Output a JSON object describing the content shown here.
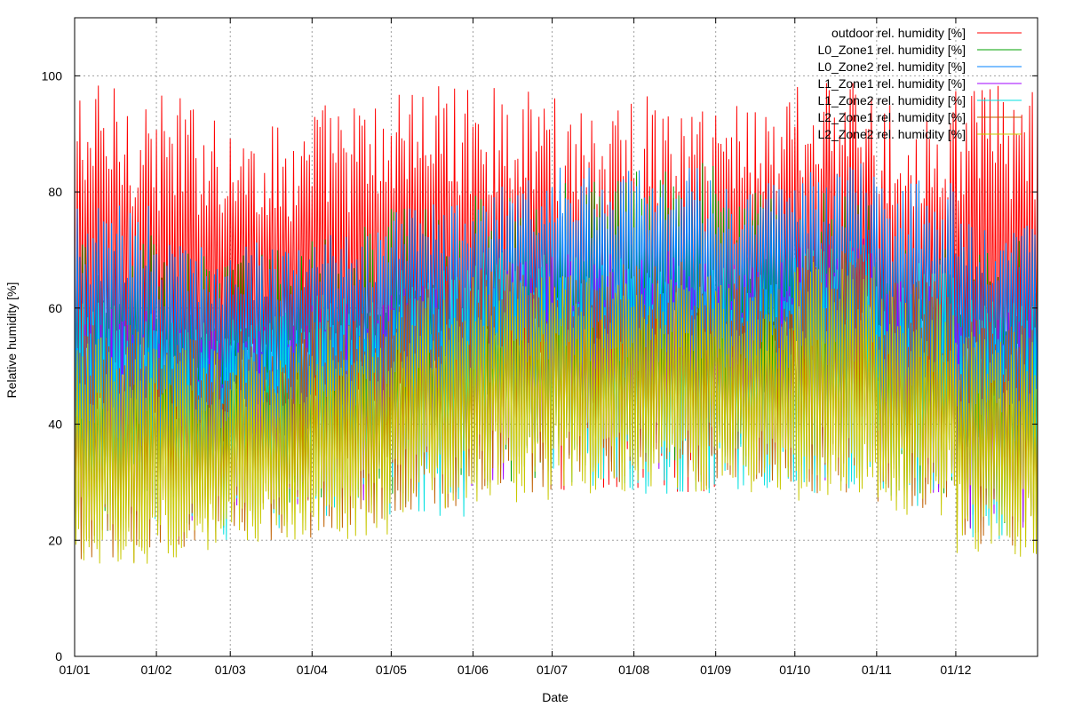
{
  "chart_data": {
    "type": "line",
    "title": "",
    "xlabel": "Date",
    "ylabel": "Relative humidity [%]",
    "xlim": [
      "01/01",
      "12/31"
    ],
    "ylim": [
      0,
      110
    ],
    "grid": true,
    "legend_position": "top-right",
    "x_ticks": [
      "01/01",
      "01/02",
      "01/03",
      "01/04",
      "01/05",
      "01/06",
      "01/07",
      "01/08",
      "01/09",
      "01/10",
      "01/11",
      "01/12"
    ],
    "y_ticks": [
      "0",
      "20",
      "40",
      "60",
      "80",
      "100"
    ],
    "month_days": [
      31,
      28,
      31,
      30,
      31,
      30,
      31,
      31,
      30,
      31,
      30,
      31
    ],
    "months": [
      "01/01",
      "01/02",
      "01/03",
      "01/04",
      "01/05",
      "01/06",
      "01/07",
      "01/08",
      "01/09",
      "01/10",
      "01/11",
      "01/12"
    ],
    "series": [
      {
        "name": "outdoor rel. humidity [%]",
        "color": "#ff0000",
        "monthly_max": [
          99,
          97,
          92,
          96,
          99,
          98,
          98,
          97,
          97,
          99,
          95,
          99
        ],
        "monthly_min": [
          32,
          30,
          38,
          35,
          38,
          40,
          28,
          28,
          40,
          45,
          40,
          35
        ]
      },
      {
        "name": "L0_Zone1 rel. humidity [%]",
        "color": "#00a000",
        "monthly_max": [
          75,
          70,
          70,
          75,
          78,
          80,
          82,
          85,
          80,
          80,
          75,
          72
        ],
        "monthly_min": [
          22,
          22,
          25,
          25,
          28,
          30,
          32,
          33,
          33,
          30,
          28,
          22
        ]
      },
      {
        "name": "L0_Zone2 rel. humidity [%]",
        "color": "#0080ff",
        "monthly_max": [
          78,
          72,
          72,
          75,
          78,
          82,
          85,
          85,
          82,
          85,
          82,
          75
        ],
        "monthly_min": [
          35,
          35,
          38,
          38,
          42,
          45,
          45,
          48,
          48,
          42,
          38,
          35
        ]
      },
      {
        "name": "L1_Zone1 rel. humidity [%]",
        "color": "#a000ff",
        "monthly_max": [
          60,
          58,
          58,
          62,
          65,
          68,
          70,
          70,
          68,
          72,
          65,
          60
        ],
        "monthly_min": [
          22,
          22,
          24,
          25,
          28,
          30,
          32,
          32,
          32,
          30,
          28,
          22
        ]
      },
      {
        "name": "L1_Zone2 rel. humidity [%]",
        "color": "#00e0e0",
        "monthly_max": [
          62,
          58,
          60,
          64,
          68,
          70,
          70,
          68,
          68,
          72,
          68,
          62
        ],
        "monthly_min": [
          20,
          20,
          22,
          24,
          24,
          28,
          28,
          28,
          28,
          28,
          25,
          20
        ]
      },
      {
        "name": "L2_Zone1 rel. humidity [%]",
        "color": "#c06000",
        "monthly_max": [
          58,
          55,
          56,
          60,
          65,
          68,
          68,
          68,
          66,
          70,
          65,
          58
        ],
        "monthly_min": [
          16,
          18,
          20,
          22,
          25,
          28,
          30,
          30,
          30,
          28,
          25,
          18
        ]
      },
      {
        "name": "L2_Zone2 rel. humidity [%]",
        "color": "#c8c800",
        "monthly_max": [
          56,
          54,
          54,
          58,
          62,
          66,
          66,
          66,
          64,
          68,
          62,
          56
        ],
        "monthly_min": [
          15,
          17,
          19,
          20,
          24,
          26,
          28,
          28,
          28,
          26,
          24,
          17
        ]
      }
    ]
  }
}
